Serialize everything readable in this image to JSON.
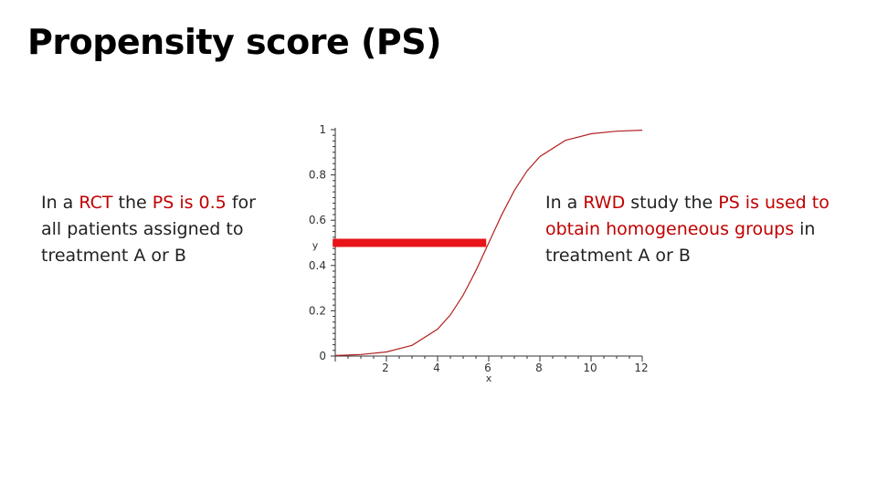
{
  "title": "Propensity score (PS)",
  "left_note": {
    "parts": [
      {
        "text": "In a ",
        "hl": false
      },
      {
        "text": "RCT",
        "hl": true
      },
      {
        "text": " the ",
        "hl": false
      },
      {
        "text": "PS is 0.5",
        "hl": true
      },
      {
        "text": " for all patients assigned to treatment A or B",
        "hl": false
      }
    ]
  },
  "right_note": {
    "parts": [
      {
        "text": "In a ",
        "hl": false
      },
      {
        "text": "RWD",
        "hl": true
      },
      {
        "text": " study the ",
        "hl": false
      },
      {
        "text": "PS is used to obtain homogeneous groups",
        "hl": true
      },
      {
        "text": " in treatment A or B",
        "hl": false
      }
    ]
  },
  "colors": {
    "highlight": "#c00000",
    "curve": "#b22222",
    "marker": "#e8141a",
    "axis": "#333333"
  },
  "chart_data": {
    "type": "line",
    "xlabel": "x",
    "ylabel": "y",
    "xlim": [
      0,
      12
    ],
    "ylim": [
      0,
      1
    ],
    "x_ticks": [
      "2",
      "4",
      "6",
      "8",
      "10",
      "12"
    ],
    "y_ticks": [
      "0",
      "0.2",
      "0.4",
      "0.6",
      "0.8",
      "1"
    ],
    "series": [
      {
        "x": [
          0,
          1,
          2,
          3,
          4,
          4.5,
          5,
          5.5,
          6,
          6.5,
          7,
          7.5,
          8,
          9,
          10,
          11,
          12
        ],
        "y": [
          0.0025,
          0.007,
          0.018,
          0.047,
          0.119,
          0.182,
          0.269,
          0.378,
          0.5,
          0.622,
          0.731,
          0.818,
          0.881,
          0.953,
          0.982,
          0.993,
          0.9975
        ]
      }
    ],
    "marker_line": {
      "y": 0.5,
      "x_start": -0.1,
      "x_end": 5.9
    }
  }
}
